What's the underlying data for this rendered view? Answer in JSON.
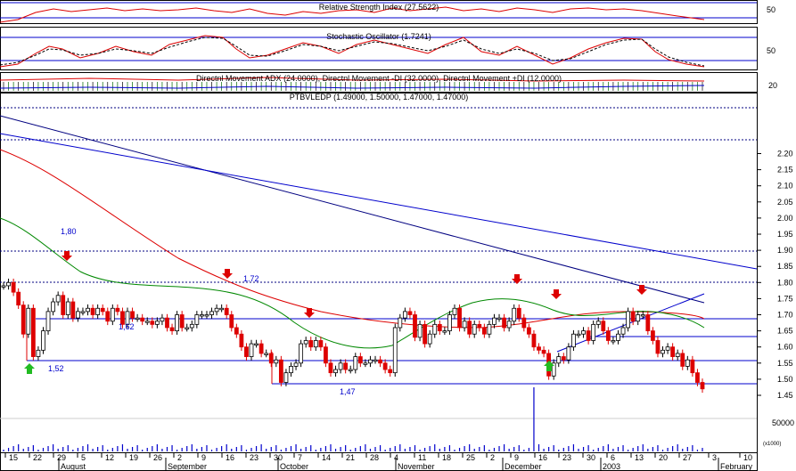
{
  "colors": {
    "frame": "#000000",
    "blue": "#0000cc",
    "red": "#dd0000",
    "green": "#008800",
    "dotted": "#000080",
    "volume": "#0000cc",
    "up_arrow": "#22bb22",
    "down_arrow": "#dd0000"
  },
  "panels": {
    "rsi": {
      "title": "Relative Strength Index (27.5622)",
      "axis_label": "50"
    },
    "stochastic": {
      "title": "Stochastic Oscillator (1.7241)",
      "axis_label": "50"
    },
    "dmi": {
      "title": "Directnl Movement ADX (24.0000), Directnl Movement -DI (32.0000), Directnl Movement +DI (12.0000)",
      "axis_label": "20"
    },
    "price": {
      "title": "PTBVLEDP (1.49000, 1.50000, 1.47000, 1.47000)"
    },
    "volume": {
      "axis_label": "50000",
      "unit_label": "(x1000)"
    }
  },
  "chart_data": {
    "type": "candlestick",
    "symbol": "PTBVLEDP",
    "last": {
      "open": 1.49,
      "high": 1.5,
      "low": 1.47,
      "close": 1.47
    },
    "y_ticks": [
      "2.20",
      "2.15",
      "2.10",
      "2.05",
      "2.00",
      "1.95",
      "1.90",
      "1.85",
      "1.80",
      "1.75",
      "1.70",
      "1.65",
      "1.60",
      "1.55",
      "1.50",
      "1.45"
    ],
    "ylim": [
      1.45,
      2.2
    ],
    "x_day_labels": [
      "15",
      "22",
      "29",
      "5",
      "12",
      "19",
      "26",
      "2",
      "9",
      "16",
      "23",
      "30",
      "7",
      "14",
      "21",
      "28",
      "4",
      "11",
      "18",
      "25",
      "2",
      "9",
      "16",
      "23",
      "30",
      "6",
      "13",
      "20",
      "27",
      "3",
      "10"
    ],
    "x_month_labels": [
      "August",
      "September",
      "October",
      "November",
      "December",
      "2003",
      "February"
    ],
    "annotations": [
      "1,80",
      "1.72",
      "1,62",
      "1,52",
      "1,47"
    ],
    "closes": [
      1.79,
      1.8,
      1.77,
      1.73,
      1.64,
      1.72,
      1.57,
      1.59,
      1.65,
      1.71,
      1.74,
      1.76,
      1.7,
      1.74,
      1.69,
      1.71,
      1.71,
      1.72,
      1.7,
      1.72,
      1.71,
      1.68,
      1.72,
      1.71,
      1.67,
      1.71,
      1.69,
      1.69,
      1.68,
      1.68,
      1.67,
      1.68,
      1.69,
      1.66,
      1.65,
      1.7,
      1.66,
      1.66,
      1.67,
      1.7,
      1.7,
      1.7,
      1.71,
      1.72,
      1.72,
      1.7,
      1.66,
      1.64,
      1.6,
      1.57,
      1.61,
      1.61,
      1.58,
      1.58,
      1.55,
      1.56,
      1.49,
      1.52,
      1.54,
      1.55,
      1.61,
      1.62,
      1.6,
      1.62,
      1.6,
      1.55,
      1.52,
      1.53,
      1.55,
      1.53,
      1.53,
      1.57,
      1.55,
      1.55,
      1.56,
      1.56,
      1.55,
      1.53,
      1.52,
      1.66,
      1.69,
      1.71,
      1.7,
      1.63,
      1.67,
      1.61,
      1.64,
      1.67,
      1.65,
      1.65,
      1.7,
      1.72,
      1.66,
      1.68,
      1.64,
      1.67,
      1.66,
      1.64,
      1.67,
      1.69,
      1.69,
      1.66,
      1.68,
      1.72,
      1.69,
      1.66,
      1.64,
      1.6,
      1.59,
      1.58,
      1.51,
      1.55,
      1.57,
      1.56,
      1.6,
      1.64,
      1.64,
      1.65,
      1.62,
      1.67,
      1.68,
      1.65,
      1.62,
      1.62,
      1.64,
      1.66,
      1.71,
      1.68,
      1.7,
      1.7,
      1.65,
      1.62,
      1.58,
      1.59,
      1.6,
      1.57,
      1.58,
      1.54,
      1.56,
      1.52,
      1.49,
      1.47
    ],
    "volume_spike": {
      "position": "early December",
      "value_approx": 50000
    }
  }
}
